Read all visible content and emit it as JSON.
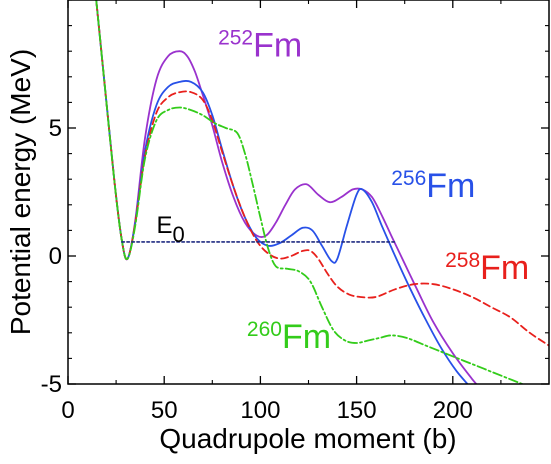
{
  "chart_data": {
    "type": "line",
    "xlabel": "Quadrupole moment (b)",
    "ylabel": "Potential energy (MeV)",
    "xlim": [
      0,
      250
    ],
    "ylim": [
      -5,
      10
    ],
    "xticks": [
      0,
      50,
      100,
      150,
      200
    ],
    "yticks": [
      -5,
      0,
      5
    ],
    "grid": false,
    "series": [
      {
        "name": "252Fm",
        "mass": "252",
        "element": "Fm",
        "color": "#9a32cd",
        "dash": "solid",
        "x": [
          12,
          18,
          24,
          28,
          31,
          35,
          40,
          46,
          52,
          58,
          62,
          66,
          70,
          75,
          80,
          86,
          92,
          98,
          103,
          108,
          113,
          118,
          124,
          130,
          136,
          142,
          148,
          153,
          158,
          163,
          168,
          175,
          182,
          190,
          200,
          210,
          218
        ],
        "y": [
          12,
          7.5,
          3.0,
          0.6,
          -0.1,
          1.4,
          4.6,
          6.9,
          7.8,
          8.0,
          7.8,
          7.2,
          6.3,
          5.1,
          3.7,
          2.3,
          1.3,
          0.8,
          0.8,
          1.3,
          2.0,
          2.6,
          2.8,
          2.4,
          2.1,
          2.3,
          2.6,
          2.6,
          2.3,
          1.6,
          0.8,
          -0.3,
          -1.4,
          -2.6,
          -3.8,
          -4.8,
          -5.5
        ]
      },
      {
        "name": "256Fm",
        "mass": "256",
        "element": "Fm",
        "color": "#2851e8",
        "dash": "solid",
        "x": [
          12,
          18,
          24,
          28,
          31,
          35,
          40,
          46,
          52,
          58,
          64,
          70,
          75,
          80,
          86,
          92,
          98,
          104,
          110,
          116,
          122,
          127,
          132,
          137,
          140,
          145,
          150,
          153,
          158,
          163,
          170,
          178,
          186,
          194,
          202,
          210
        ],
        "y": [
          12,
          7.5,
          3.0,
          0.6,
          -0.1,
          1.3,
          4.1,
          5.9,
          6.6,
          6.8,
          6.8,
          6.4,
          5.5,
          4.2,
          2.7,
          1.5,
          0.7,
          0.4,
          0.5,
          0.8,
          1.1,
          1.0,
          0.4,
          -0.2,
          -0.1,
          1.2,
          2.4,
          2.6,
          2.1,
          1.2,
          0.0,
          -1.3,
          -2.5,
          -3.6,
          -4.5,
          -5.2
        ]
      },
      {
        "name": "258Fm",
        "mass": "258",
        "element": "Fm",
        "color": "#e8201c",
        "dash": "dashed",
        "x": [
          12,
          18,
          24,
          28,
          31,
          35,
          40,
          46,
          52,
          58,
          64,
          70,
          75,
          80,
          86,
          92,
          98,
          104,
          110,
          116,
          122,
          126,
          130,
          135,
          140,
          146,
          152,
          160,
          170,
          180,
          190,
          200,
          210,
          220,
          230,
          240,
          250
        ],
        "y": [
          12,
          7.5,
          3.0,
          0.6,
          -0.1,
          1.3,
          3.9,
          5.6,
          6.2,
          6.4,
          6.4,
          6.1,
          5.3,
          4.1,
          2.7,
          1.5,
          0.6,
          0.1,
          -0.1,
          0.0,
          0.2,
          0.2,
          -0.1,
          -0.7,
          -1.2,
          -1.5,
          -1.6,
          -1.6,
          -1.3,
          -1.1,
          -1.1,
          -1.3,
          -1.6,
          -2.0,
          -2.4,
          -3.0,
          -3.5
        ]
      },
      {
        "name": "260Fm",
        "mass": "260",
        "element": "Fm",
        "color": "#33cc1a",
        "dash": "dashdot",
        "x": [
          12,
          18,
          24,
          28,
          31,
          35,
          40,
          46,
          52,
          58,
          64,
          70,
          76,
          82,
          88,
          92,
          96,
          100,
          104,
          108,
          114,
          120,
          126,
          132,
          138,
          144,
          150,
          156,
          162,
          168,
          176,
          186,
          196,
          206,
          216,
          226,
          236,
          246
        ],
        "y": [
          12,
          7.5,
          3.0,
          0.6,
          -0.1,
          1.2,
          3.8,
          5.3,
          5.7,
          5.8,
          5.7,
          5.5,
          5.2,
          5.0,
          4.8,
          4.0,
          2.8,
          1.5,
          0.3,
          -0.4,
          -0.5,
          -0.6,
          -1.0,
          -2.0,
          -2.9,
          -3.3,
          -3.4,
          -3.3,
          -3.2,
          -3.1,
          -3.2,
          -3.5,
          -3.8,
          -4.1,
          -4.4,
          -4.7,
          -5.0,
          -5.3
        ]
      },
      {
        "name": "E0",
        "color": "#1f2a80",
        "dash": "dotted",
        "x": [
          28,
          170
        ],
        "y": [
          0.55,
          0.55
        ]
      }
    ],
    "annotations": [
      {
        "id": "e0",
        "main": "E",
        "sub": "0",
        "color": "#000000",
        "x": 46,
        "y": 0.9
      },
      {
        "id": "252",
        "main": "Fm",
        "sup": "252",
        "color": "#9a32cd",
        "x": 78,
        "y": 7.8
      },
      {
        "id": "256",
        "main": "Fm",
        "sup": "256",
        "color": "#2851e8",
        "x": 168,
        "y": 2.3
      },
      {
        "id": "258",
        "main": "Fm",
        "sup": "258",
        "color": "#e8201c",
        "x": 196,
        "y": -0.9
      },
      {
        "id": "260",
        "main": "Fm",
        "sup": "260",
        "color": "#33cc1a",
        "x": 93,
        "y": -3.6
      }
    ]
  }
}
